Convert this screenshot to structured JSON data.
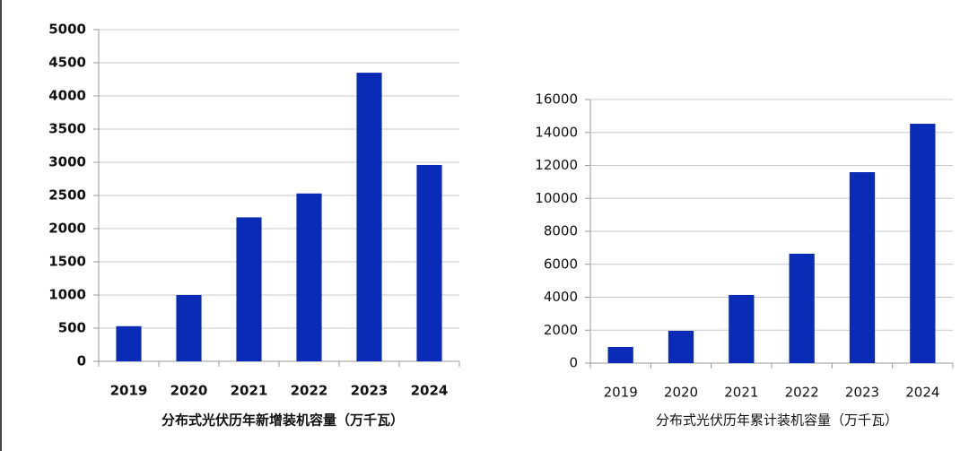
{
  "chart_data": [
    {
      "type": "bar",
      "x_label": "分布式光伏历年新增装机容量（万千瓦）",
      "categories": [
        "2019",
        "2020",
        "2021",
        "2022",
        "2023",
        "2024"
      ],
      "values": [
        530,
        1000,
        2170,
        2530,
        4350,
        2960
      ],
      "color": "#0a2bb5",
      "ylim": [
        0,
        5000
      ],
      "yticks": [
        0,
        500,
        1000,
        1500,
        2000,
        2500,
        3000,
        3500,
        4000,
        4500,
        5000
      ],
      "grid": true
    },
    {
      "type": "bar",
      "x_label": "分布式光伏历年累计装机容量（万千瓦）",
      "categories": [
        "2019",
        "2020",
        "2021",
        "2022",
        "2023",
        "2024"
      ],
      "values": [
        980,
        1960,
        4140,
        6640,
        11590,
        14530
      ],
      "color": "#0a2bb5",
      "ylim": [
        0,
        16000
      ],
      "yticks": [
        0,
        2000,
        4000,
        6000,
        8000,
        10000,
        12000,
        14000,
        16000
      ],
      "grid": true
    }
  ]
}
